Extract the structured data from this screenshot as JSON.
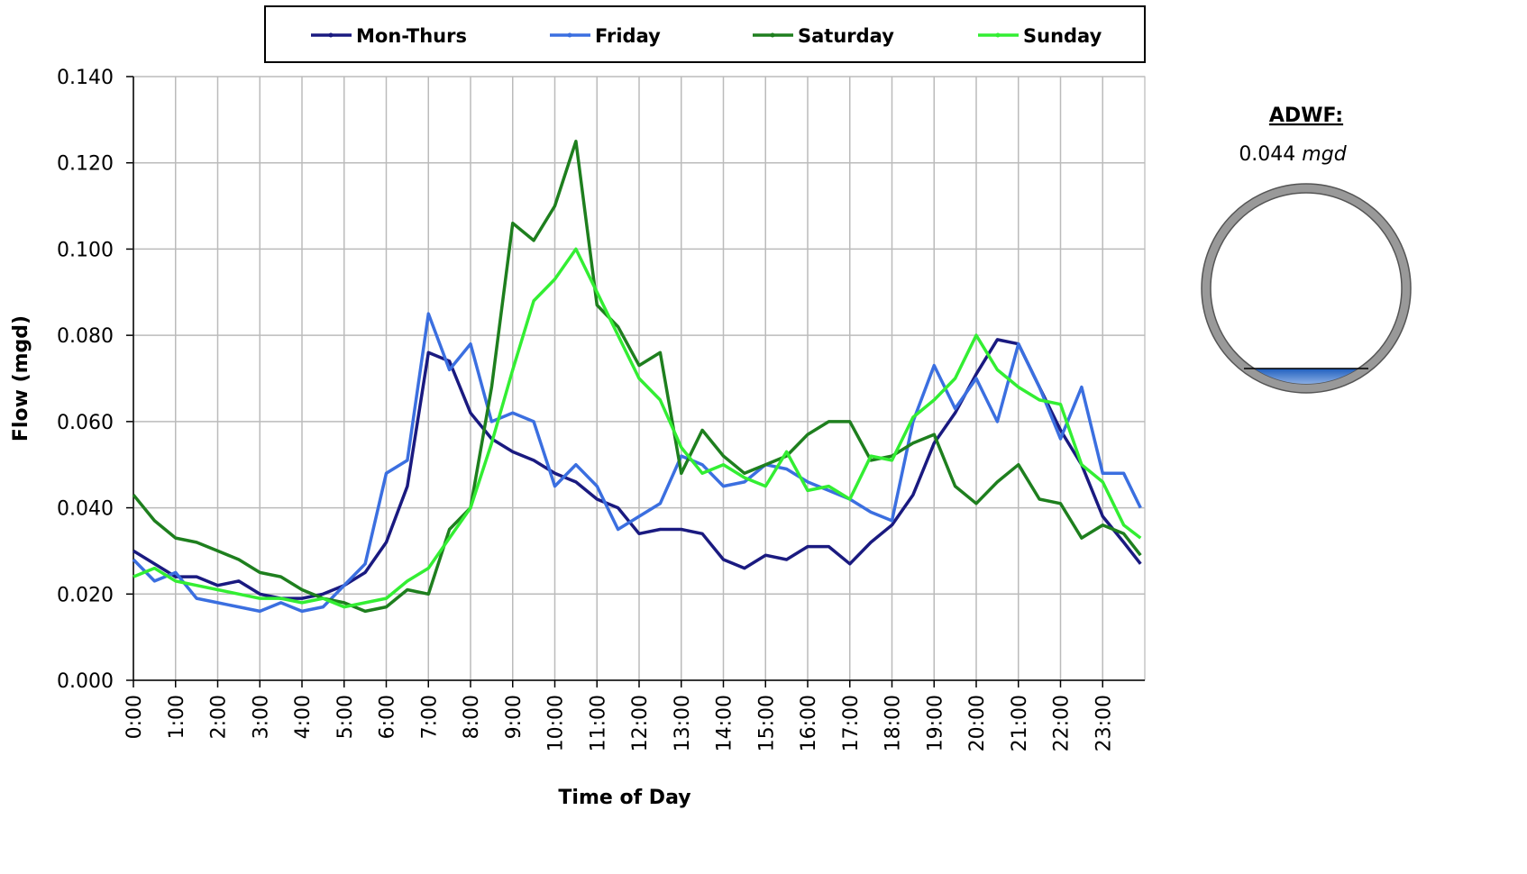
{
  "chart_data": {
    "type": "line",
    "x_label": "Time of Day",
    "y_label": "Flow (mgd)",
    "xlim": [
      0,
      24
    ],
    "ylim": [
      0,
      0.14
    ],
    "grid": true,
    "legend": "top",
    "xticks": [
      {
        "value": 0,
        "label": "0:00"
      },
      {
        "value": 1,
        "label": "1:00"
      },
      {
        "value": 2,
        "label": "2:00"
      },
      {
        "value": 3,
        "label": "3:00"
      },
      {
        "value": 4,
        "label": "4:00"
      },
      {
        "value": 5,
        "label": "5:00"
      },
      {
        "value": 6,
        "label": "6:00"
      },
      {
        "value": 7,
        "label": "7:00"
      },
      {
        "value": 8,
        "label": "8:00"
      },
      {
        "value": 9,
        "label": "9:00"
      },
      {
        "value": 10,
        "label": "10:00"
      },
      {
        "value": 11,
        "label": "11:00"
      },
      {
        "value": 12,
        "label": "12:00"
      },
      {
        "value": 13,
        "label": "13:00"
      },
      {
        "value": 14,
        "label": "14:00"
      },
      {
        "value": 15,
        "label": "15:00"
      },
      {
        "value": 16,
        "label": "16:00"
      },
      {
        "value": 17,
        "label": "17:00"
      },
      {
        "value": 18,
        "label": "18:00"
      },
      {
        "value": 19,
        "label": "19:00"
      },
      {
        "value": 20,
        "label": "20:00"
      },
      {
        "value": 21,
        "label": "21:00"
      },
      {
        "value": 22,
        "label": "22:00"
      },
      {
        "value": 23,
        "label": "23:00"
      }
    ],
    "yticks": [
      {
        "value": 0,
        "label": "0.000"
      },
      {
        "value": 0.02,
        "label": "0.020"
      },
      {
        "value": 0.04,
        "label": "0.040"
      },
      {
        "value": 0.06,
        "label": "0.060"
      },
      {
        "value": 0.08,
        "label": "0.080"
      },
      {
        "value": 0.1,
        "label": "0.100"
      },
      {
        "value": 0.12,
        "label": "0.120"
      },
      {
        "value": 0.14,
        "label": "0.140"
      }
    ],
    "x": [
      0,
      0.5,
      1,
      1.5,
      2,
      2.5,
      3,
      3.5,
      4,
      4.5,
      5,
      5.5,
      6,
      6.5,
      7,
      7.5,
      8,
      8.5,
      9,
      9.5,
      10,
      10.5,
      11,
      11.5,
      12,
      12.5,
      13,
      13.5,
      14,
      14.5,
      15,
      15.5,
      16,
      16.5,
      17,
      17.5,
      18,
      18.5,
      19,
      19.5,
      20,
      20.5,
      21,
      21.5,
      22,
      22.5,
      23,
      23.5,
      23.9
    ],
    "series": [
      {
        "name": "Mon-Thurs",
        "color": "#1a1a80",
        "values": [
          0.03,
          0.027,
          0.024,
          0.024,
          0.022,
          0.023,
          0.02,
          0.019,
          0.019,
          0.02,
          0.022,
          0.025,
          0.032,
          0.045,
          0.076,
          0.074,
          0.062,
          0.056,
          0.053,
          0.051,
          0.048,
          0.046,
          0.042,
          0.04,
          0.034,
          0.035,
          0.035,
          0.034,
          0.028,
          0.026,
          0.029,
          0.028,
          0.031,
          0.031,
          0.027,
          0.032,
          0.036,
          0.043,
          0.055,
          0.062,
          0.071,
          0.079,
          0.078,
          0.068,
          0.058,
          0.05,
          0.038,
          0.032,
          0.027
        ]
      },
      {
        "name": "Friday",
        "color": "#3b6fe0",
        "values": [
          0.028,
          0.023,
          0.025,
          0.019,
          0.018,
          0.017,
          0.016,
          0.018,
          0.016,
          0.017,
          0.022,
          0.027,
          0.048,
          0.051,
          0.085,
          0.072,
          0.078,
          0.06,
          0.062,
          0.06,
          0.045,
          0.05,
          0.045,
          0.035,
          0.038,
          0.041,
          0.052,
          0.05,
          0.045,
          0.046,
          0.05,
          0.049,
          0.046,
          0.044,
          0.042,
          0.039,
          0.037,
          0.06,
          0.073,
          0.063,
          0.07,
          0.06,
          0.078,
          0.068,
          0.056,
          0.068,
          0.048,
          0.048,
          0.04
        ]
      },
      {
        "name": "Saturday",
        "color": "#1e7f1e",
        "values": [
          0.043,
          0.037,
          0.033,
          0.032,
          0.03,
          0.028,
          0.025,
          0.024,
          0.021,
          0.019,
          0.018,
          0.016,
          0.017,
          0.021,
          0.02,
          0.035,
          0.04,
          0.068,
          0.106,
          0.102,
          0.11,
          0.125,
          0.087,
          0.082,
          0.073,
          0.076,
          0.048,
          0.058,
          0.052,
          0.048,
          0.05,
          0.052,
          0.057,
          0.06,
          0.06,
          0.051,
          0.052,
          0.055,
          0.057,
          0.045,
          0.041,
          0.046,
          0.05,
          0.042,
          0.041,
          0.033,
          0.036,
          0.034,
          0.029
        ]
      },
      {
        "name": "Sunday",
        "color": "#33ee33",
        "values": [
          0.024,
          0.026,
          0.023,
          0.022,
          0.021,
          0.02,
          0.019,
          0.019,
          0.018,
          0.019,
          0.017,
          0.018,
          0.019,
          0.023,
          0.026,
          0.033,
          0.04,
          0.055,
          0.072,
          0.088,
          0.093,
          0.1,
          0.09,
          0.08,
          0.07,
          0.065,
          0.054,
          0.048,
          0.05,
          0.047,
          0.045,
          0.053,
          0.044,
          0.045,
          0.042,
          0.052,
          0.051,
          0.061,
          0.065,
          0.07,
          0.08,
          0.072,
          0.068,
          0.065,
          0.064,
          0.05,
          0.046,
          0.036,
          0.033
        ]
      }
    ],
    "adwf_label": "ADWF:",
    "adwf_value": "0.044",
    "adwf_unit": "mgd"
  }
}
